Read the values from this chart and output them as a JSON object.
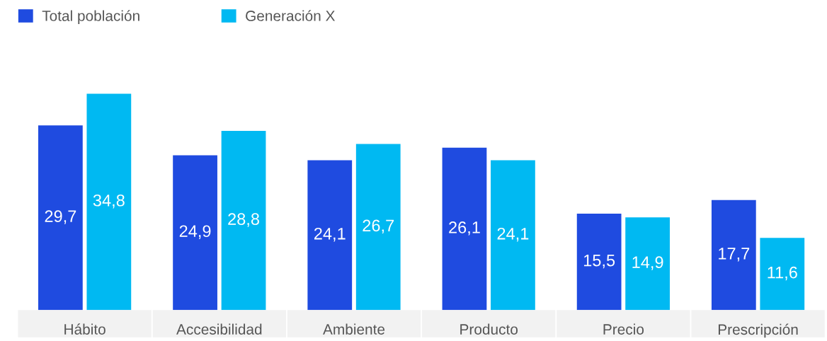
{
  "chart_data": {
    "type": "bar",
    "categories": [
      "Hábito",
      "Accesibilidad",
      "Ambiente",
      "Producto",
      "Precio",
      "Prescripción"
    ],
    "series": [
      {
        "name": "Total población",
        "color": "#1f4be0",
        "values": [
          29.7,
          24.9,
          24.1,
          26.1,
          15.5,
          17.7
        ],
        "value_labels": [
          "29,7",
          "24,9",
          "24,1",
          "26,1",
          "15,5",
          "17,7"
        ]
      },
      {
        "name": "Generación X",
        "color": "#00b9f2",
        "values": [
          34.8,
          28.8,
          26.7,
          24.1,
          14.9,
          11.6
        ],
        "value_labels": [
          "34,8",
          "28,8",
          "26,7",
          "24,1",
          "14,9",
          "11,6"
        ]
      }
    ],
    "grid": false,
    "legend": "top left"
  }
}
